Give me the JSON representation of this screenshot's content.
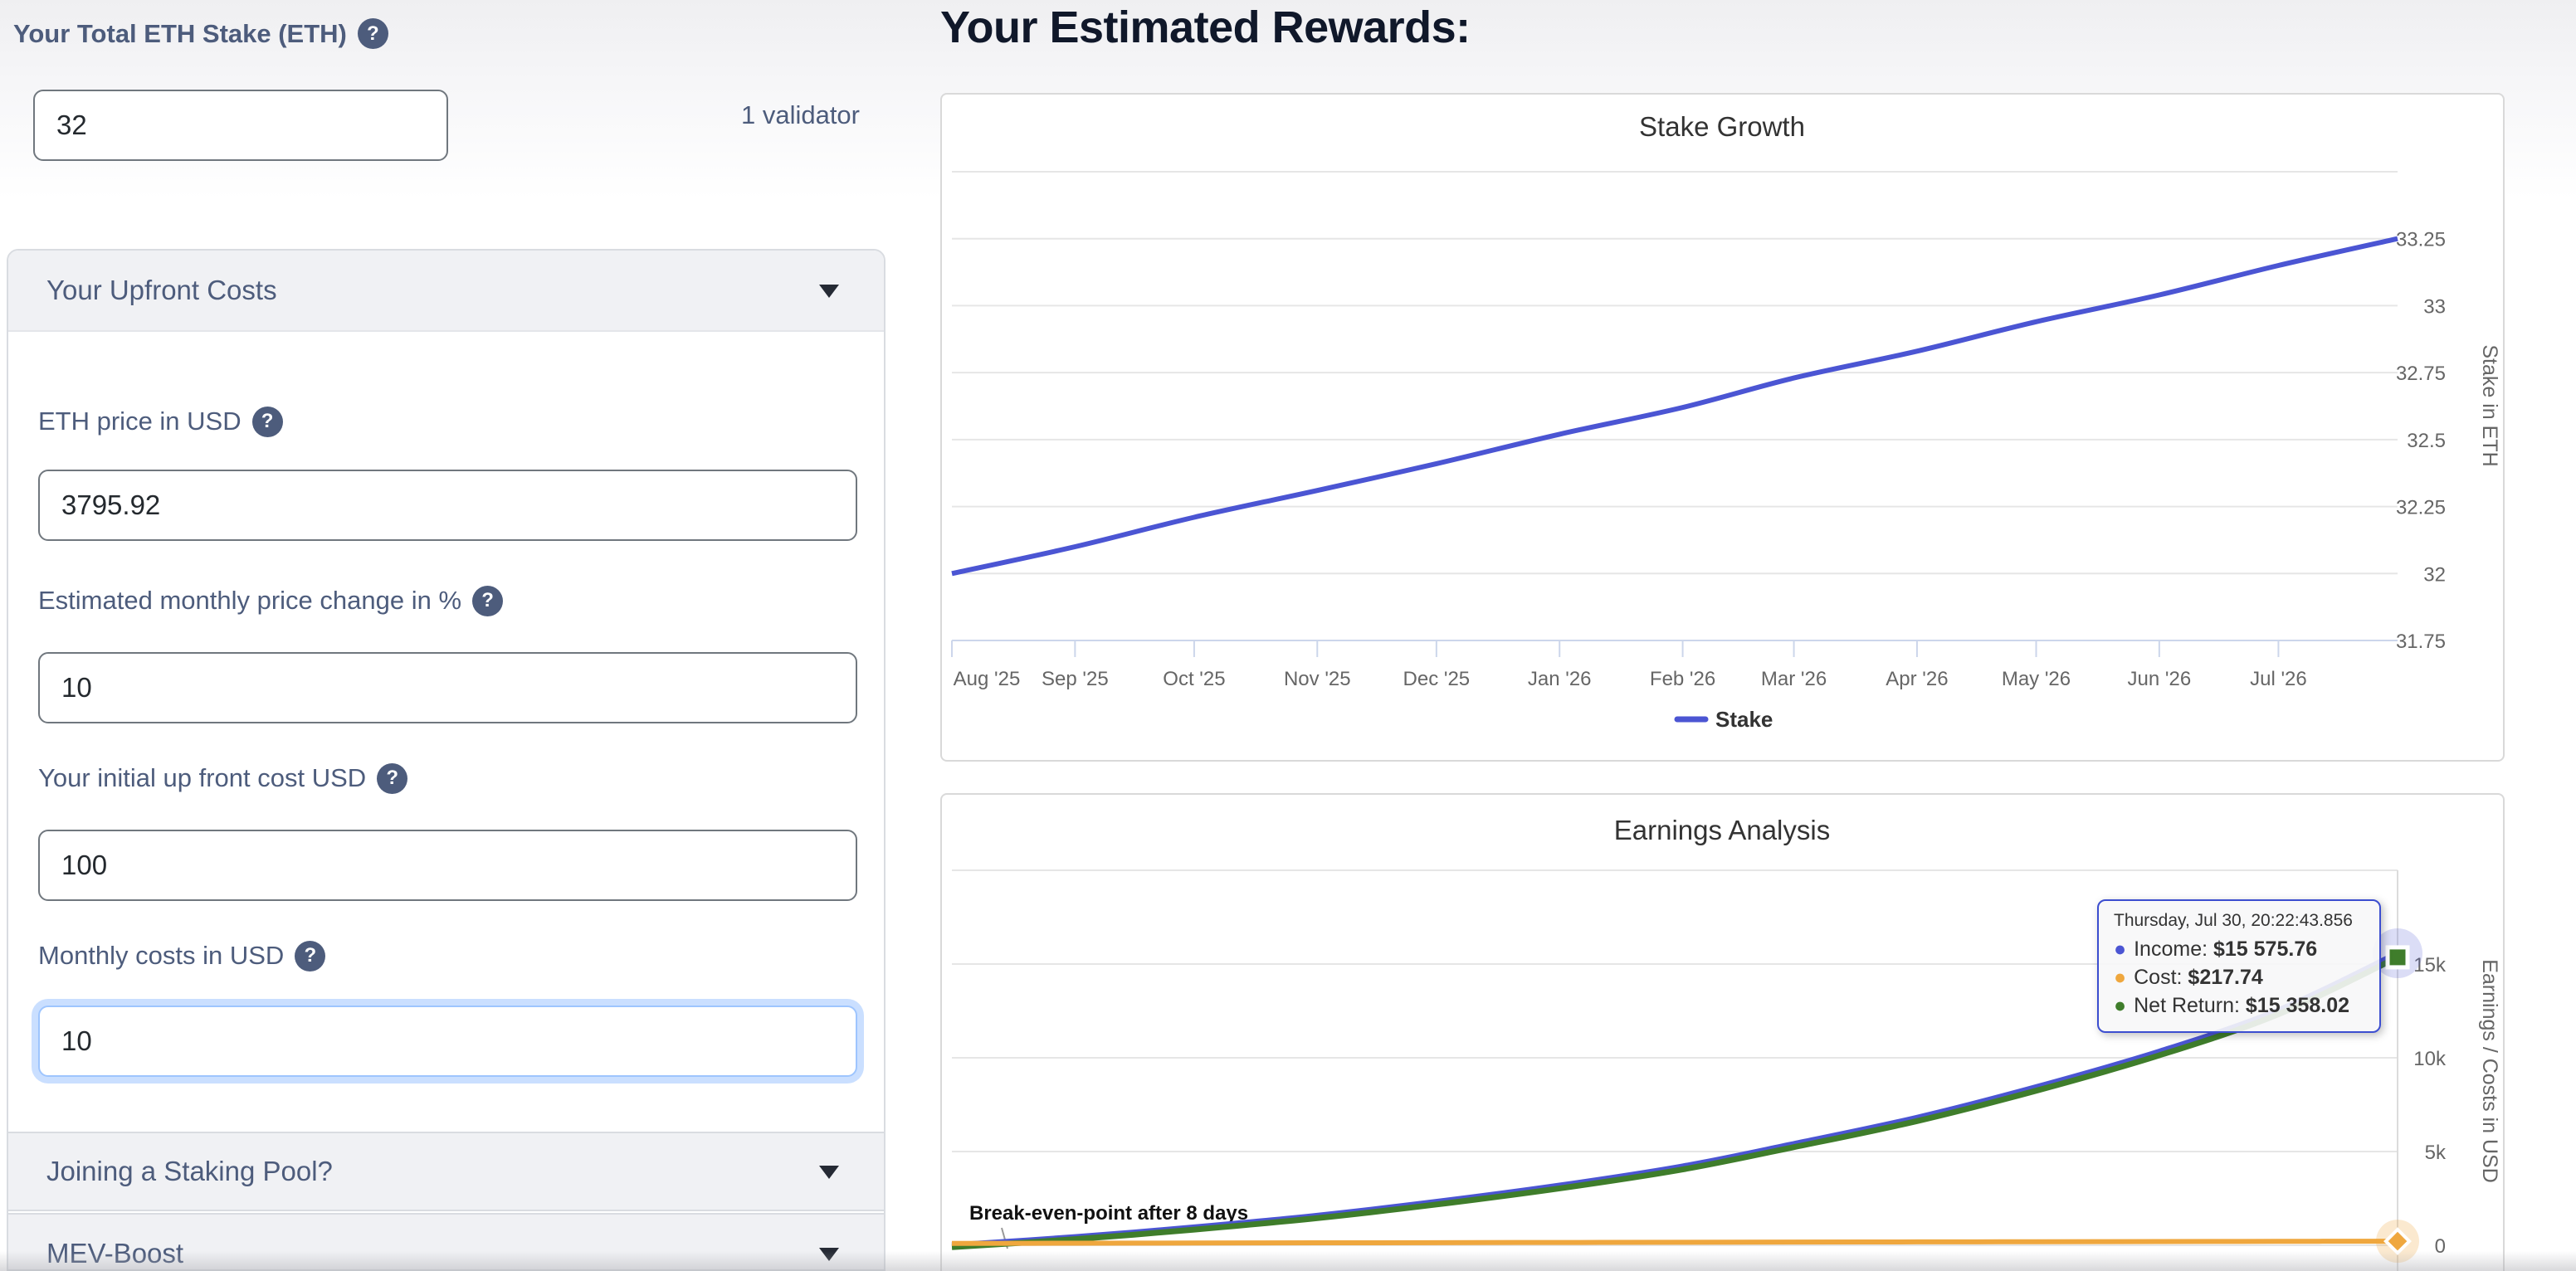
{
  "icons": {
    "help_glyph": "?",
    "bullet": "●"
  },
  "colors": {
    "accent_blue": "#4b55d3",
    "accent_green": "#3f7d2b",
    "accent_orange": "#efa73e",
    "slate_text": "#4d5c7c",
    "focus_ring": "#9ec5fe"
  },
  "sidebar": {
    "stake_label": "Your Total ETH Stake (ETH)",
    "stake_value": "32",
    "validator_text": "1 validator",
    "sections": {
      "upfront": "Your Upfront Costs",
      "pool": "Joining a Staking Pool?",
      "mev": "MEV-Boost"
    },
    "fields": [
      {
        "label": "ETH price in USD",
        "value": "3795.92"
      },
      {
        "label": "Estimated monthly price change in %",
        "value": "10"
      },
      {
        "label": "Your initial up front cost USD",
        "value": "100"
      },
      {
        "label": "Monthly costs in USD",
        "value": "10"
      }
    ]
  },
  "main": {
    "title": "Your Estimated Rewards:"
  },
  "chart_data": [
    {
      "type": "line",
      "title": "Stake Growth",
      "ylabel": "Stake in ETH",
      "ylim": [
        31.75,
        33.5
      ],
      "grid": true,
      "legend_position": "bottom",
      "yticks": [
        {
          "v": 31.75,
          "label": "31.75"
        },
        {
          "v": 32,
          "label": "32"
        },
        {
          "v": 32.25,
          "label": "32.25"
        },
        {
          "v": 32.5,
          "label": "32.5"
        },
        {
          "v": 32.75,
          "label": "32.75"
        },
        {
          "v": 33,
          "label": "33"
        },
        {
          "v": 33.25,
          "label": "33.25"
        },
        {
          "v": 33.5,
          "label": ""
        }
      ],
      "categories": [
        "Aug '25",
        "Sep '25",
        "Oct '25",
        "Nov '25",
        "Dec '25",
        "Jan '26",
        "Feb '26",
        "Mar '26",
        "Apr '26",
        "May '26",
        "Jun '26",
        "Jul '26"
      ],
      "month_day_offsets": [
        0,
        31,
        61,
        92,
        122,
        153,
        184,
        212,
        243,
        273,
        304,
        334
      ],
      "point_day_offsets": [
        0,
        31,
        61,
        92,
        122,
        153,
        184,
        212,
        243,
        273,
        304,
        334,
        364
      ],
      "span_days": 364,
      "series": [
        {
          "name": "Stake",
          "color": "#4b55d3",
          "values": [
            32,
            32.1,
            32.21,
            32.31,
            32.41,
            32.52,
            32.62,
            32.73,
            32.83,
            32.94,
            33.04,
            33.15,
            33.25
          ]
        }
      ],
      "legend": [
        {
          "label": "Stake",
          "color": "#4b55d3"
        }
      ]
    },
    {
      "type": "line",
      "title": "Earnings Analysis",
      "ylabel": "Earnings / Costs in USD",
      "ylim": [
        -1460,
        20000
      ],
      "grid": true,
      "yticks": [
        {
          "v": 0,
          "label": "0"
        },
        {
          "v": 5000,
          "label": "5k"
        },
        {
          "v": 10000,
          "label": "10k"
        },
        {
          "v": 15000,
          "label": "15k"
        },
        {
          "v": 20000,
          "label": ""
        }
      ],
      "point_day_offsets": [
        0,
        31,
        61,
        92,
        122,
        153,
        184,
        212,
        243,
        273,
        304,
        334,
        364
      ],
      "span_days": 364,
      "series": [
        {
          "name": "Income",
          "color": "#4b55d3",
          "values": [
            0,
            435,
            957,
            1579,
            2316,
            3185,
            4207,
            5404,
            6803,
            8434,
            10330,
            12533,
            15575.76
          ]
        },
        {
          "name": "Cost",
          "color": "#efa73e",
          "values": [
            100,
            110,
            120,
            130,
            140,
            150,
            160,
            170,
            180,
            190,
            200,
            210,
            217.74
          ]
        },
        {
          "name": "Net Return",
          "color": "#3f7d2b",
          "values": [
            -100,
            325,
            837,
            1449,
            2176,
            3035,
            4047,
            5234,
            6623,
            8244,
            10130,
            12323,
            15358.02
          ]
        }
      ],
      "annotation": "Break-even-point after 8 days",
      "tooltip": {
        "header": "Thursday, Jul 30, 20:22:43.856",
        "rows": [
          {
            "label": "Income:",
            "value": "$15 575.76",
            "color": "#4b55d3"
          },
          {
            "label": "Cost:",
            "value": "$217.74",
            "color": "#efa73e"
          },
          {
            "label": "Net Return:",
            "value": "$15 358.02",
            "color": "#3f7d2b"
          }
        ]
      }
    }
  ]
}
